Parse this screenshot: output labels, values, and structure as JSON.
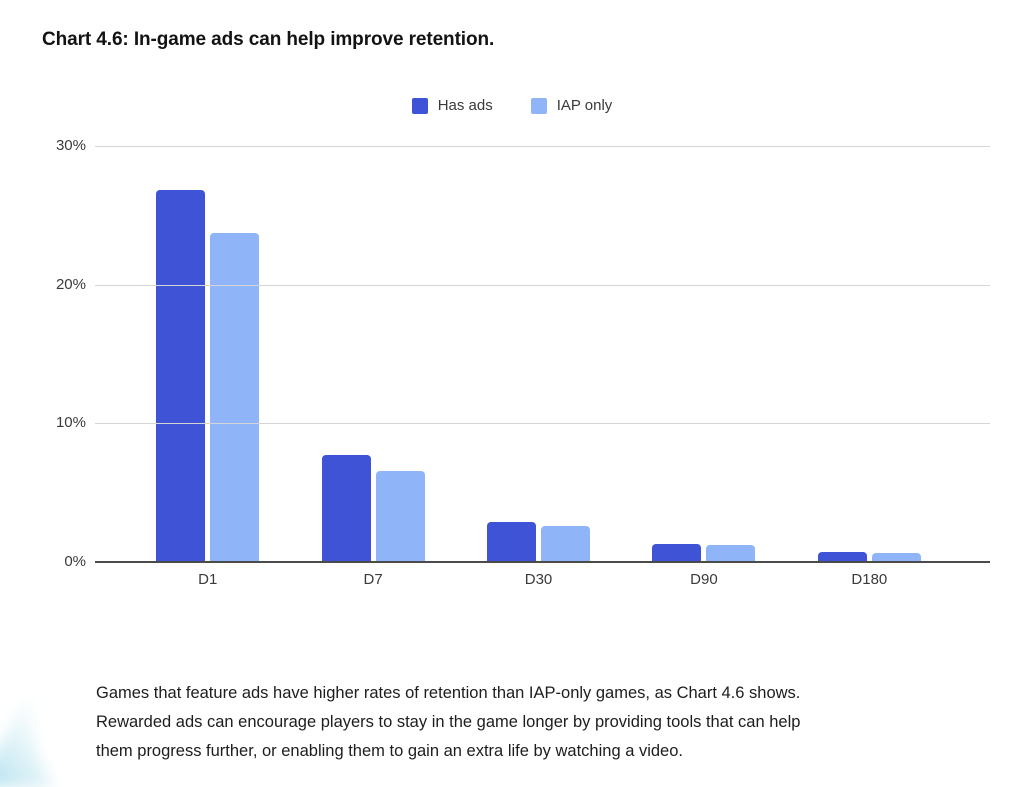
{
  "page": {
    "title": "Chart 4.6: In-game ads can help improve retention.",
    "caption_lines": [
      "Games that feature ads have higher rates of retention than IAP-only games, as Chart 4.6 shows.",
      "Rewarded ads can encourage players to stay in the game longer by providing tools that can help",
      "them progress further, or enabling them to gain an extra life by watching a video."
    ]
  },
  "colors": {
    "has_ads": "#3F53D6",
    "iap_only": "#8FB4F7",
    "gridline": "#d5d5d5",
    "axis_line": "#4b4b4b",
    "swoosh_cyan": "#9ed9e9"
  },
  "chart_data": {
    "type": "bar",
    "title": "Chart 4.6: In-game ads can help improve retention.",
    "categories": [
      "D1",
      "D7",
      "D30",
      "D90",
      "D180"
    ],
    "series": [
      {
        "name": "Has ads",
        "color": "#3F53D6",
        "values": [
          26.8,
          7.7,
          2.9,
          1.3,
          0.7
        ]
      },
      {
        "name": "IAP only",
        "color": "#8FB4F7",
        "values": [
          23.7,
          6.6,
          2.6,
          1.2,
          0.65
        ]
      }
    ],
    "xlabel": "",
    "ylabel": "",
    "unit": "%",
    "ylim": [
      0,
      30
    ],
    "y_tick_values": [
      30,
      20,
      10,
      0
    ],
    "y_ticks": [
      "30%",
      "20%",
      "10%",
      "0%"
    ],
    "grid": true,
    "legend_position": "top-center"
  }
}
